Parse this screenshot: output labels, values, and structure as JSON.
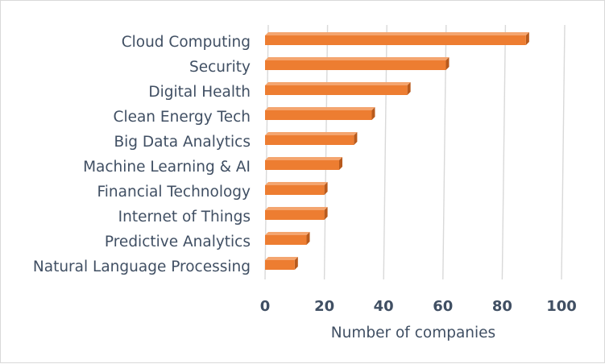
{
  "chart_data": {
    "type": "bar",
    "orientation": "horizontal",
    "style": "3d",
    "title": "",
    "xlabel": "Number of companies",
    "ylabel": "",
    "xlim": [
      0,
      100
    ],
    "x_ticks": [
      0,
      20,
      40,
      60,
      80,
      100
    ],
    "grid": "vertical",
    "legend": "none",
    "categories": [
      "Cloud Computing",
      "Security",
      "Digital Health",
      "Clean Energy Tech",
      "Big Data Analytics",
      "Machine Learning & AI",
      "Financial Technology",
      "Internet of Things",
      "Predictive Analytics",
      "Natural Language Processing"
    ],
    "values": [
      88,
      61,
      48,
      36,
      30,
      25,
      20,
      20,
      14,
      10
    ],
    "colors": {
      "bar_front": "#ed7d31",
      "bar_top": "#f4a56f",
      "bar_side": "#b85a1c",
      "grid": "#d9d9d9",
      "text": "#404f63"
    }
  }
}
